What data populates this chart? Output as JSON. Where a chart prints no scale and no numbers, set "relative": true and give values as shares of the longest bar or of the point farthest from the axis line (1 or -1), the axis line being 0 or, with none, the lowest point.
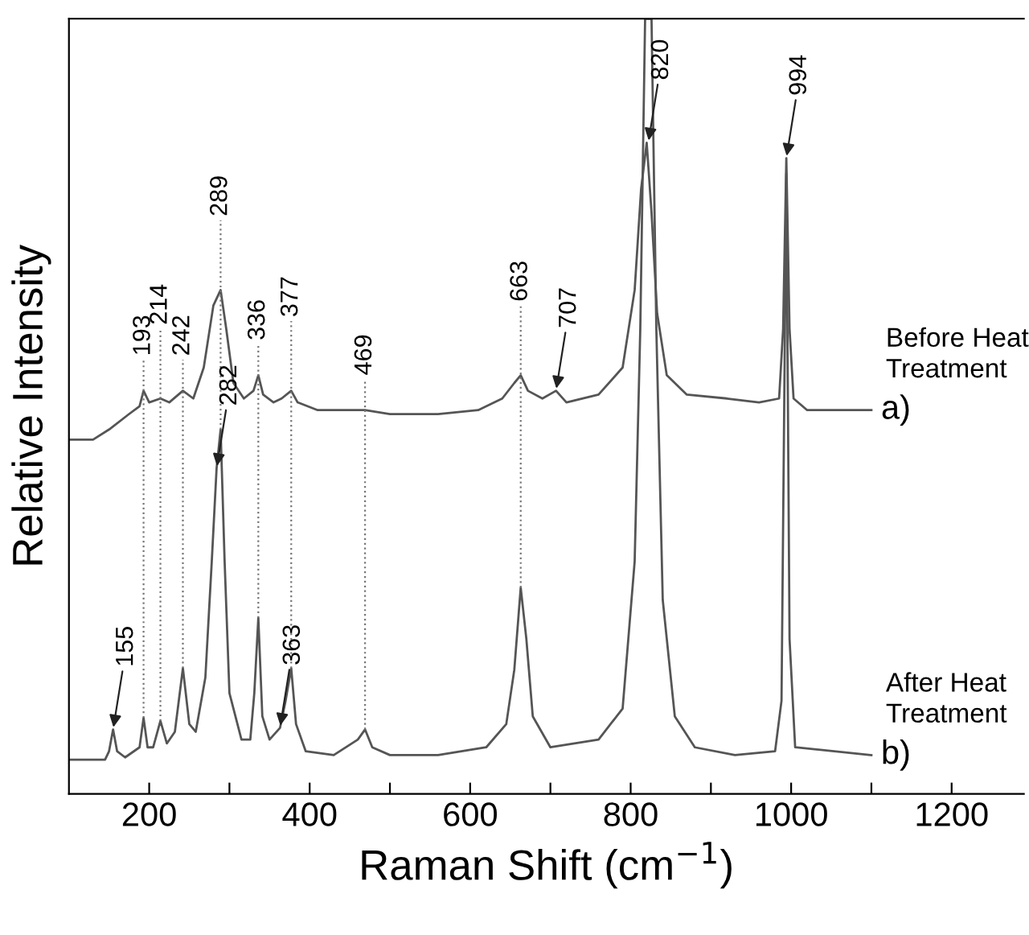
{
  "chart_data": {
    "type": "line",
    "relative": true,
    "xlabel": "Raman Shift (cm$^{−1}$)",
    "ylabel": "Relative Intensity",
    "xlim": [
      100,
      1290
    ],
    "xticks": [
      200,
      {
        "value": 300,
        "label": null
      },
      400,
      {
        "value": 500,
        "label": null
      },
      600,
      {
        "value": 700,
        "label": null
      },
      800,
      {
        "value": 900,
        "label": null
      },
      1000,
      {
        "value": 1100,
        "label": null
      },
      1200
    ],
    "grid": false,
    "legend": false,
    "marker": "none",
    "line_style": "solid",
    "series": [
      {
        "name": "a)",
        "color": "#555555",
        "x": [
          100,
          130,
          150,
          175,
          188,
          193,
          200,
          214,
          225,
          242,
          255,
          268,
          280,
          289,
          296,
          305,
          318,
          330,
          336,
          342,
          355,
          365,
          377,
          385,
          410,
          469,
          500,
          560,
          610,
          640,
          655,
          663,
          672,
          690,
          707,
          720,
          760,
          790,
          805,
          813,
          820,
          826,
          833,
          845,
          870,
          920,
          960,
          985,
          990,
          994,
          998,
          1003,
          1020,
          1100
        ],
        "values": [
          0.457,
          0.457,
          0.47,
          0.49,
          0.5,
          0.52,
          0.505,
          0.51,
          0.505,
          0.52,
          0.51,
          0.55,
          0.63,
          0.65,
          0.6,
          0.53,
          0.51,
          0.52,
          0.54,
          0.515,
          0.505,
          0.51,
          0.52,
          0.505,
          0.495,
          0.495,
          0.49,
          0.49,
          0.495,
          0.51,
          0.53,
          0.54,
          0.52,
          0.51,
          0.52,
          0.505,
          0.515,
          0.55,
          0.65,
          0.78,
          0.84,
          0.75,
          0.62,
          0.54,
          0.515,
          0.51,
          0.505,
          0.51,
          0.6,
          0.82,
          0.6,
          0.51,
          0.495,
          0.495
        ]
      },
      {
        "name": "b)",
        "color": "#555555",
        "x": [
          100,
          145,
          150,
          155,
          160,
          170,
          188,
          193,
          198,
          205,
          214,
          222,
          232,
          242,
          250,
          258,
          270,
          278,
          284,
          289,
          294,
          300,
          315,
          326,
          331,
          336,
          341,
          350,
          363,
          370,
          377,
          383,
          395,
          430,
          460,
          469,
          478,
          500,
          560,
          620,
          645,
          655,
          663,
          670,
          678,
          700,
          760,
          790,
          805,
          812,
          818,
          826,
          832,
          840,
          855,
          880,
          930,
          980,
          988,
          994,
          998,
          1005,
          1100
        ],
        "values": [
          0.044,
          0.044,
          0.055,
          0.083,
          0.055,
          0.047,
          0.06,
          0.098,
          0.06,
          0.06,
          0.094,
          0.065,
          0.08,
          0.162,
          0.09,
          0.08,
          0.15,
          0.3,
          0.42,
          0.47,
          0.3,
          0.13,
          0.07,
          0.07,
          0.13,
          0.227,
          0.1,
          0.07,
          0.085,
          0.12,
          0.162,
          0.09,
          0.055,
          0.05,
          0.07,
          0.083,
          0.06,
          0.05,
          0.05,
          0.06,
          0.09,
          0.16,
          0.266,
          0.2,
          0.1,
          0.06,
          0.07,
          0.11,
          0.3,
          0.6,
          1.0,
          1.0,
          0.6,
          0.25,
          0.1,
          0.06,
          0.05,
          0.055,
          0.12,
          0.8,
          0.2,
          0.06,
          0.05
        ]
      }
    ],
    "ref_lines": [
      {
        "axis": "x",
        "value": 193,
        "label": "193",
        "line_style": "dotted",
        "color": "#777777"
      },
      {
        "axis": "x",
        "value": 214,
        "label": "214",
        "line_style": "dotted",
        "color": "#777777"
      },
      {
        "axis": "x",
        "value": 242,
        "label": "242",
        "line_style": "dotted",
        "color": "#777777"
      },
      {
        "axis": "x",
        "value": 289,
        "label": "289",
        "line_style": "dotted",
        "color": "#777777"
      },
      {
        "axis": "x",
        "value": 336,
        "label": "336",
        "line_style": "dotted",
        "color": "#777777"
      },
      {
        "axis": "x",
        "value": 377,
        "label": "377",
        "line_style": "dotted",
        "color": "#777777"
      },
      {
        "axis": "x",
        "value": 469,
        "label": "469",
        "line_style": "dotted",
        "color": "#777777"
      },
      {
        "axis": "x",
        "value": 663,
        "label": "663",
        "line_style": "dotted",
        "color": "#777777"
      }
    ],
    "annotations": [
      "Before Heat\nTreatment",
      "After Heat\nTreatment",
      {
        "text": "155",
        "x": 155,
        "y": 0.083
      },
      {
        "text": "707",
        "x": 707,
        "y": 0.52
      },
      {
        "text": "994",
        "x": 994,
        "y": 0.82
      },
      {
        "text": "820",
        "x": 822,
        "y": 0.84
      },
      {
        "text": "282",
        "x": 284,
        "y": 0.42
      },
      {
        "text": "363",
        "x": 363,
        "y": 0.085
      }
    ]
  }
}
